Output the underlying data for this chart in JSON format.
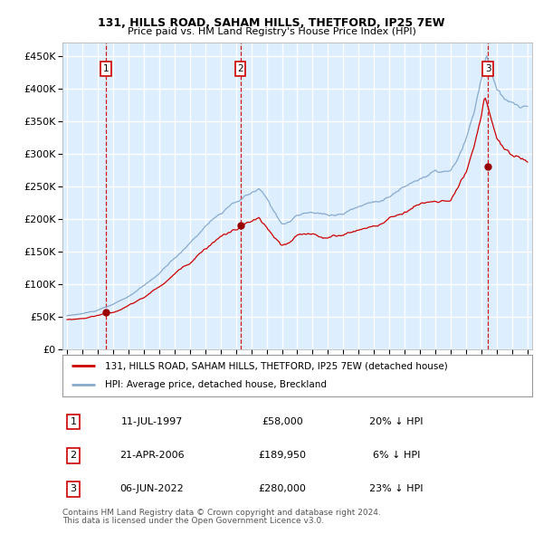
{
  "title1": "131, HILLS ROAD, SAHAM HILLS, THETFORD, IP25 7EW",
  "title2": "Price paid vs. HM Land Registry's House Price Index (HPI)",
  "ylabel_ticks": [
    "£0",
    "£50K",
    "£100K",
    "£150K",
    "£200K",
    "£250K",
    "£300K",
    "£350K",
    "£400K",
    "£450K"
  ],
  "ytick_values": [
    0,
    50000,
    100000,
    150000,
    200000,
    250000,
    300000,
    350000,
    400000,
    450000
  ],
  "ylim": [
    0,
    470000
  ],
  "xlim_start": 1994.7,
  "xlim_end": 2025.3,
  "sale_year_nums": [
    1997.53,
    2006.29,
    2022.42
  ],
  "sale_prices": [
    58000,
    189950,
    280000
  ],
  "sale_labels": [
    "1",
    "2",
    "3"
  ],
  "sale_label_pcts": [
    "20% ↓ HPI",
    "6% ↓ HPI",
    "23% ↓ HPI"
  ],
  "sale_date_strs": [
    "11-JUL-1997",
    "21-APR-2006",
    "06-JUN-2022"
  ],
  "sale_price_strs": [
    "£58,000",
    "£189,950",
    "£280,000"
  ],
  "bg_color": "#ddeeff",
  "grid_color": "#ffffff",
  "line_color_red": "#cc0000",
  "line_color_blue": "#88aacc",
  "dot_color": "#990000",
  "dashed_color": "#cc0000",
  "legend_line1": "131, HILLS ROAD, SAHAM HILLS, THETFORD, IP25 7EW (detached house)",
  "legend_line2": "HPI: Average price, detached house, Breckland",
  "footer1": "Contains HM Land Registry data © Crown copyright and database right 2024.",
  "footer2": "This data is licensed under the Open Government Licence v3.0."
}
